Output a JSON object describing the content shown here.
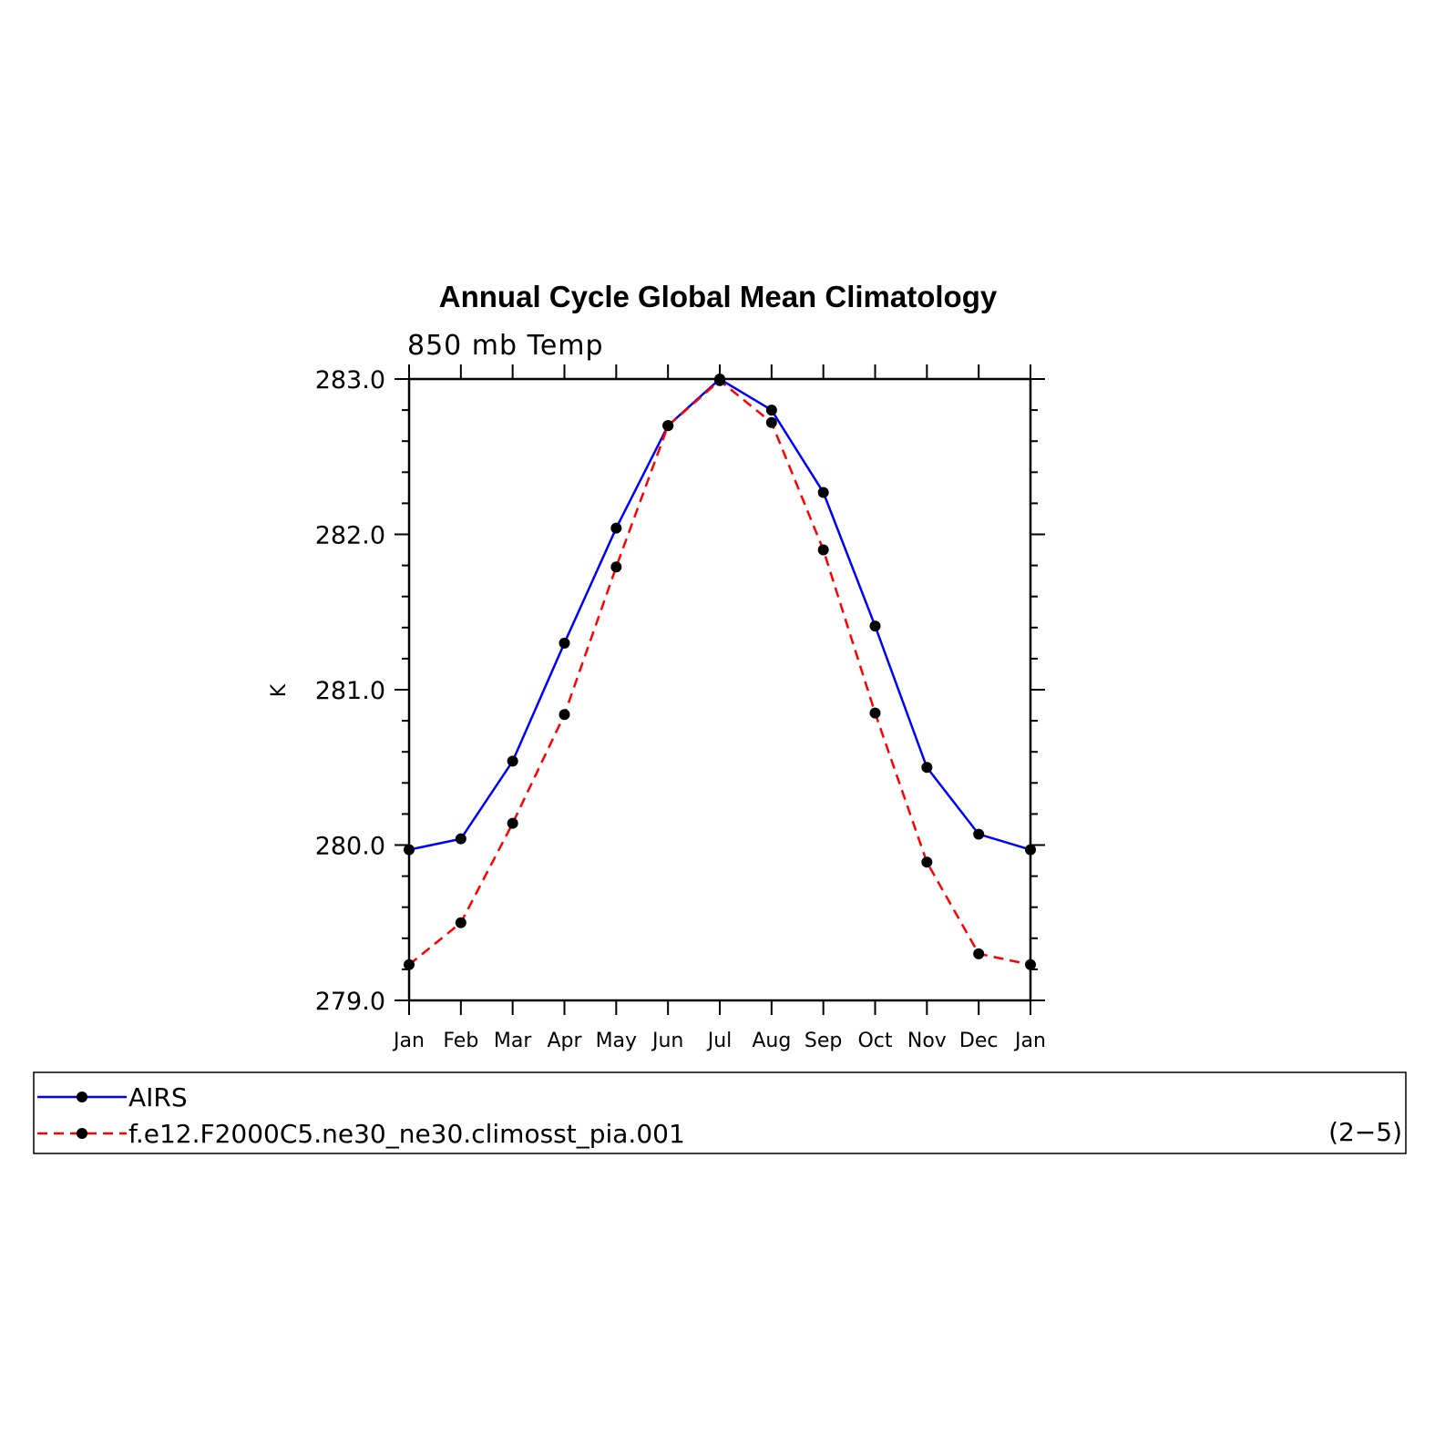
{
  "chart_data": {
    "type": "line",
    "title": "Annual Cycle Global Mean Climatology",
    "subtitle": "850 mb Temp",
    "ylabel": "K",
    "xlabel": "",
    "categories": [
      "Jan",
      "Feb",
      "Mar",
      "Apr",
      "May",
      "Jun",
      "Jul",
      "Aug",
      "Sep",
      "Oct",
      "Nov",
      "Dec",
      "Jan"
    ],
    "ylim": [
      279.0,
      283.0
    ],
    "yticks": [
      "279.0",
      "280.0",
      "281.0",
      "282.0",
      "283.0"
    ],
    "grid": false,
    "legend_position": "bottom",
    "panel_label": "(2−5)",
    "series": [
      {
        "name": "AIRS",
        "color": "#0000ff",
        "style": "solid",
        "values": [
          279.97,
          280.04,
          280.54,
          281.3,
          282.04,
          282.7,
          283.0,
          282.8,
          282.27,
          281.41,
          280.5,
          280.07,
          279.97
        ]
      },
      {
        "name": "f.e12.F2000C5.ne30_ne30.climosst_pia.001",
        "color": "#ff0000",
        "style": "dashed",
        "values": [
          279.23,
          279.5,
          280.14,
          280.84,
          281.79,
          282.7,
          282.99,
          282.72,
          281.9,
          280.85,
          279.89,
          279.3,
          279.23
        ]
      }
    ]
  }
}
